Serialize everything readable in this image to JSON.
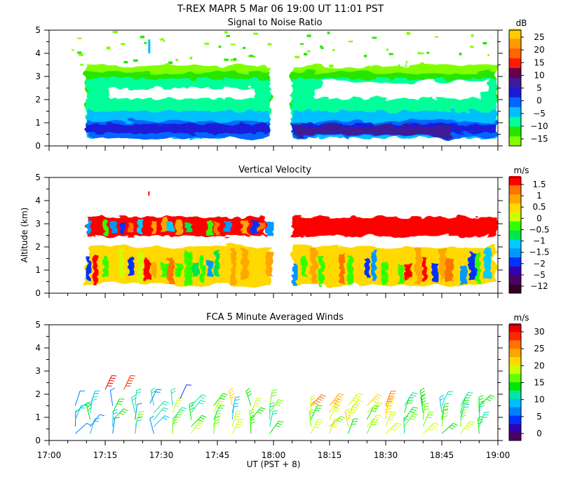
{
  "suptitle": "T-REX   MAPR   5 Mar 06   19:00 UT   11:01   PST",
  "xaxis": {
    "label": "UT  (PST + 8)",
    "range_minutes": [
      1020,
      1140
    ],
    "ticks": [
      {
        "t": 1020,
        "label": "17:00"
      },
      {
        "t": 1035,
        "label": "17:15"
      },
      {
        "t": 1050,
        "label": "17:30"
      },
      {
        "t": 1065,
        "label": "17:45"
      },
      {
        "t": 1080,
        "label": "18:00"
      },
      {
        "t": 1095,
        "label": "18:15"
      },
      {
        "t": 1110,
        "label": "18:30"
      },
      {
        "t": 1125,
        "label": "18:45"
      },
      {
        "t": 1140,
        "label": "19:00"
      }
    ]
  },
  "ylabel": "Altitude (km)",
  "yticks": [
    "0",
    "1",
    "2",
    "3",
    "4",
    "5"
  ],
  "chart_data": [
    {
      "type": "heatmap",
      "title": "Signal to Noise Ratio",
      "colorbar": {
        "unit": "dB",
        "ticks": [
          "25",
          "20",
          "15",
          "10",
          "5",
          "0",
          "−5",
          "−10",
          "−15"
        ]
      },
      "palette": [
        "#80ff00",
        "#26e600",
        "#00ff99",
        "#00bfff",
        "#0066ff",
        "#1a1ad9",
        "#3d1a99",
        "#66004d",
        "#ff1a00",
        "#ff6600",
        "#ff9900",
        "#ffcc00"
      ],
      "ylim": [
        0,
        5
      ],
      "data_gap_ut": [
        "17:59",
        "18:05"
      ],
      "layer_means_db": [
        {
          "altitude_km": [
            0.3,
            1.0
          ],
          "mean_db": 8
        },
        {
          "altitude_km": [
            1.0,
            1.7
          ],
          "mean_db": -4
        },
        {
          "altitude_km": [
            1.7,
            2.2
          ],
          "mean_db": -9
        },
        {
          "altitude_km": [
            2.2,
            2.6
          ],
          "mean_db": -12
        },
        {
          "altitude_km": [
            2.6,
            3.4
          ],
          "mean_db": -11
        }
      ]
    },
    {
      "type": "heatmap",
      "title": "Vertical Velocity",
      "colorbar": {
        "unit": "m/s",
        "ticks": [
          "1.5",
          "1",
          "0.5",
          "0",
          "−0.5",
          "−1",
          "−1.5",
          "−2",
          "−5",
          "−12"
        ]
      },
      "palette": [
        "#330026",
        "#4d0066",
        "#3300b3",
        "#0033ff",
        "#0099ff",
        "#00ccff",
        "#00e64d",
        "#33ff00",
        "#ccff00",
        "#ffd900",
        "#ffa600",
        "#ff7300",
        "#ff0000"
      ],
      "ylim": [
        0,
        5
      ],
      "data_gap_ut": [
        "17:59",
        "18:05"
      ],
      "upper_layer_km": [
        2.5,
        3.3
      ],
      "lower_layer_km": [
        0.3,
        2.0
      ]
    },
    {
      "type": "scatter",
      "title": "FCA 5 Minute Averaged Winds",
      "colorbar": {
        "unit": "m/s",
        "ticks": [
          "30",
          "25",
          "20",
          "15",
          "10",
          "5",
          "0"
        ]
      },
      "palette": [
        "#4d0066",
        "#3300b3",
        "#0033ff",
        "#0080ff",
        "#00bfff",
        "#00e6a6",
        "#00e600",
        "#66ff00",
        "#ccff00",
        "#ffd900",
        "#ffa600",
        "#ff7300",
        "#ff2600",
        "#e60000"
      ],
      "ylim": [
        0,
        5
      ],
      "barb_times_ut": [
        "17:07",
        "17:11",
        "17:17",
        "17:23",
        "17:28",
        "17:33",
        "17:38",
        "17:44",
        "17:49",
        "17:54",
        "17:59",
        "18:10",
        "18:15",
        "18:20",
        "18:25",
        "18:30",
        "18:35",
        "18:40",
        "18:45",
        "18:50",
        "18:55"
      ],
      "barb_altitudes_km": [
        0.3,
        0.6,
        0.9,
        1.2,
        1.5
      ],
      "upper_barbs": [
        {
          "time_ut": "17:15",
          "altitude_km": 2.2,
          "speed_ms": 30
        },
        {
          "time_ut": "17:20",
          "altitude_km": 2.2,
          "speed_ms": 28
        },
        {
          "time_ut": "17:27",
          "altitude_km": 1.6,
          "speed_ms": 8
        },
        {
          "time_ut": "17:35",
          "altitude_km": 1.8,
          "speed_ms": 5
        }
      ]
    }
  ]
}
